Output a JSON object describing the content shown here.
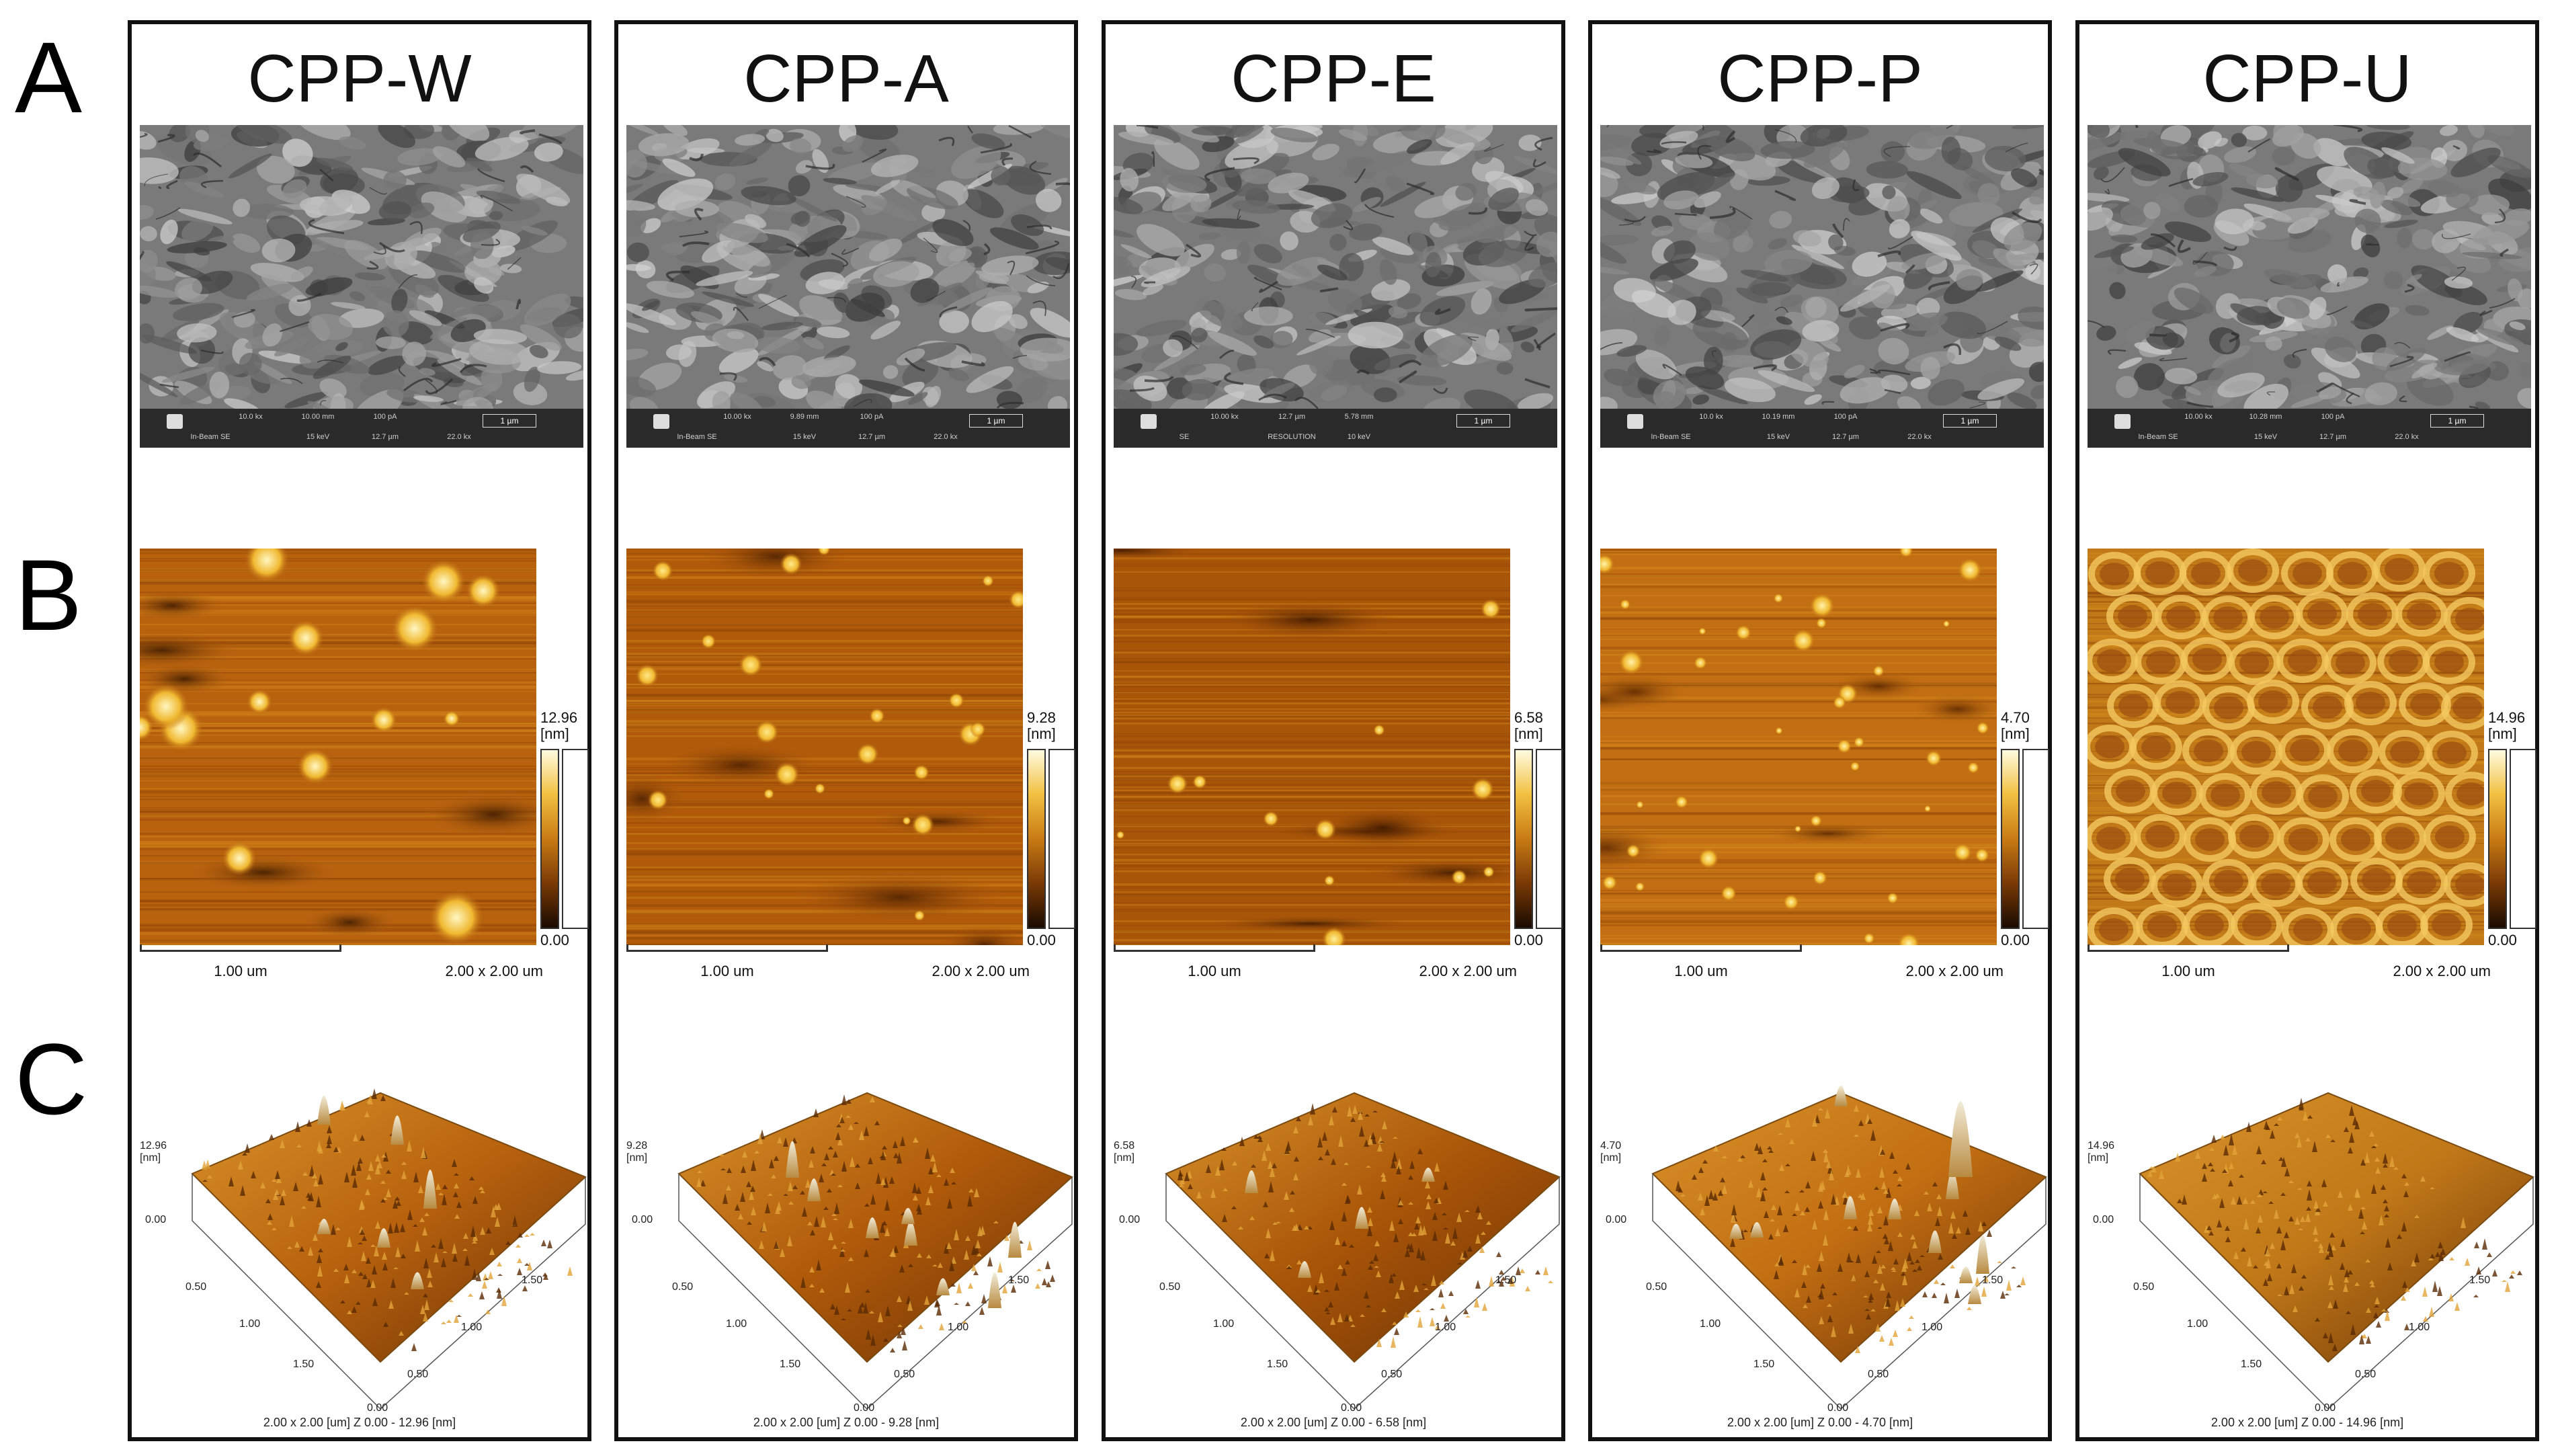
{
  "row_labels": [
    "A",
    "B",
    "C"
  ],
  "columns": [
    {
      "title": "CPP-W",
      "sem": {
        "print_mag": "10.0 kx",
        "wd": "10.00 mm",
        "bc": "100 pA",
        "scale": "1 µm",
        "det": "In-Beam SE",
        "energy": "15 keV",
        "fov": "12.7 µm",
        "mag": "22.0 kx"
      },
      "afm": {
        "zmax": "12.96",
        "unit": "[nm]",
        "zmin": "0.00",
        "scale": "1.00 um",
        "size": "2.00 x 2.00 um",
        "caption": "2.00 x 2.00 [um]    Z  0.00  -  12.96 [nm]"
      },
      "palette": {
        "base": "#b8620e",
        "bright": "#fff7c2",
        "dark": "#3a1800"
      }
    },
    {
      "title": "CPP-A",
      "sem": {
        "print_mag": "10.00 kx",
        "wd": "9.89 mm",
        "bc": "100 pA",
        "scale": "1 µm",
        "det": "In-Beam SE",
        "energy": "15 keV",
        "fov": "12.7 µm",
        "mag": "22.0 kx"
      },
      "afm": {
        "zmax": "9.28",
        "unit": "[nm]",
        "zmin": "0.00",
        "scale": "1.00 um",
        "size": "2.00 x 2.00 um",
        "caption": "2.00 x 2.00 [um]    Z  0.00  -  9.28 [nm]"
      },
      "palette": {
        "base": "#b05a0a",
        "bright": "#ffe98a",
        "dark": "#4a1e00"
      }
    },
    {
      "title": "CPP-E",
      "sem": {
        "print_mag": "10.00 kx",
        "wd": "12.7 µm",
        "bc": "5.78 mm",
        "scale": "1 µm",
        "det": "SE",
        "energy": "RESOLUTION",
        "fov": "10 keV",
        "mag": ""
      },
      "afm": {
        "zmax": "6.58",
        "unit": "[nm]",
        "zmin": "0.00",
        "scale": "1.00 um",
        "size": "2.00 x 2.00 um",
        "caption": "2.00 x 2.00 [um]    Z  0.00  -  6.58 [nm]"
      },
      "palette": {
        "base": "#a95508",
        "bright": "#ffef9a",
        "dark": "#3c1600"
      }
    },
    {
      "title": "CPP-P",
      "sem": {
        "print_mag": "10.0 kx",
        "wd": "10.19 mm",
        "bc": "100 pA",
        "scale": "1 µm",
        "det": "In-Beam SE",
        "energy": "15 keV",
        "fov": "12.7 µm",
        "mag": "22.0 kx"
      },
      "afm": {
        "zmax": "4.70",
        "unit": "[nm]",
        "zmin": "0.00",
        "scale": "1.00 um",
        "size": "2.00 x 2.00 um",
        "caption": "2.00 x 2.00 [um]    Z  0.00  -  4.70 [nm]"
      },
      "palette": {
        "base": "#c26e12",
        "bright": "#fff3a8",
        "dark": "#5a2600"
      }
    },
    {
      "title": "CPP-U",
      "sem": {
        "print_mag": "10.00 kx",
        "wd": "10.28 mm",
        "bc": "100 pA",
        "scale": "1 µm",
        "det": "In-Beam SE",
        "energy": "15 keV",
        "fov": "12.7 µm",
        "mag": "22.0 kx"
      },
      "afm": {
        "zmax": "14.96",
        "unit": "[nm]",
        "zmin": "0.00",
        "scale": "1.00 um",
        "size": "2.00 x 2.00 um",
        "caption": "2.00 x 2.00 [um]    Z  0.00  -  14.96 [nm]"
      },
      "palette": {
        "base": "#c07818",
        "bright": "#f7d068",
        "dark": "#6a3004"
      }
    }
  ],
  "axis_ticks_3d": [
    "0.00",
    "0.50",
    "1.00",
    "1.50"
  ]
}
